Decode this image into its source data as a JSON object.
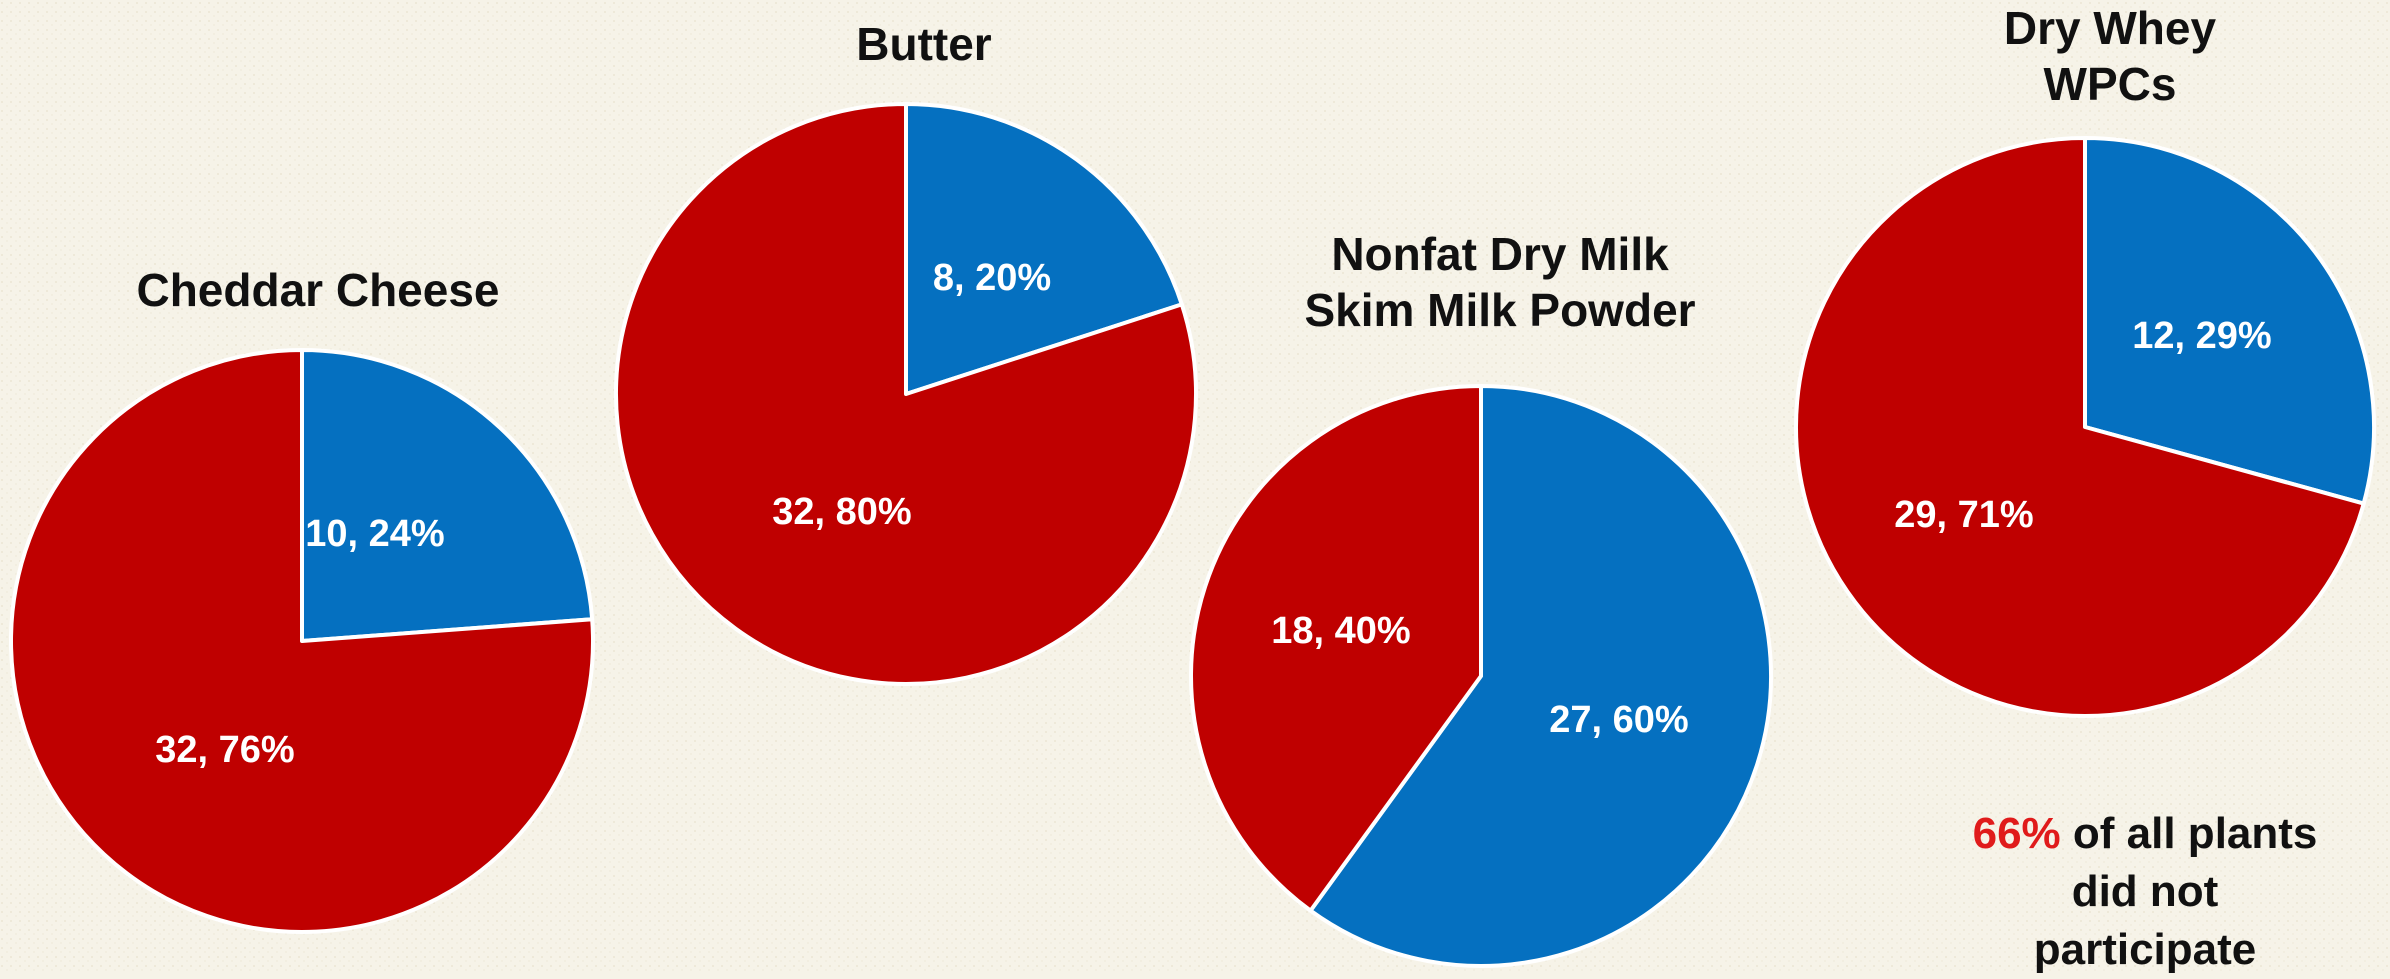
{
  "colors": {
    "participated": "#0570c0",
    "did_not": "#bf0000",
    "label": "#ffffff",
    "note_highlight": "#e01b1b"
  },
  "chart_data": [
    {
      "type": "pie",
      "title": [
        "Cheddar Cheese"
      ],
      "slices": [
        {
          "value": 10,
          "percent": 24,
          "label": "10, 24%",
          "color": "#0570c0"
        },
        {
          "value": 32,
          "percent": 76,
          "label": "32, 76%",
          "color": "#bf0000"
        }
      ]
    },
    {
      "type": "pie",
      "title": [
        "Butter"
      ],
      "slices": [
        {
          "value": 8,
          "percent": 20,
          "label": "8, 20%",
          "color": "#0570c0"
        },
        {
          "value": 32,
          "percent": 80,
          "label": "32, 80%",
          "color": "#bf0000"
        }
      ]
    },
    {
      "type": "pie",
      "title": [
        "Nonfat Dry Milk",
        "Skim Milk Powder"
      ],
      "slices": [
        {
          "value": 27,
          "percent": 60,
          "label": "27, 60%",
          "color": "#0570c0"
        },
        {
          "value": 18,
          "percent": 40,
          "label": "18, 40%",
          "color": "#bf0000"
        }
      ]
    },
    {
      "type": "pie",
      "title": [
        "Dry Whey",
        "WPCs"
      ],
      "slices": [
        {
          "value": 12,
          "percent": 29,
          "label": "12, 29%",
          "color": "#0570c0"
        },
        {
          "value": 29,
          "percent": 71,
          "label": "29, 71%",
          "color": "#bf0000"
        }
      ]
    }
  ],
  "note": {
    "highlight": "66%",
    "line1_rest": " of all plants",
    "line2": "did not",
    "line3": "participate"
  }
}
